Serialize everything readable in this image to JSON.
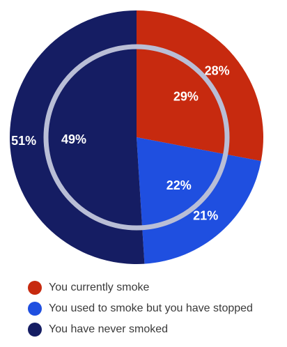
{
  "chart_data": {
    "type": "pie",
    "categories": [
      "You currently smoke",
      "You used to smoke but you have stopped",
      "You have never smoked"
    ],
    "colors": [
      "#c72a0f",
      "#1f4fe0",
      "#151d63"
    ],
    "series": [
      {
        "values": [
          28,
          21,
          51
        ],
        "labels": [
          "28%",
          "21%",
          "51%"
        ]
      },
      {
        "values": [
          29,
          22,
          49
        ],
        "labels": [
          "29%",
          "22%",
          "49%"
        ]
      }
    ],
    "ring_color": "#b9bed6",
    "legend": {
      "position": "bottom-left",
      "items": [
        {
          "label": "You currently smoke",
          "color": "#c72a0f"
        },
        {
          "label": "You used to smoke but you have stopped",
          "color": "#1f4fe0"
        },
        {
          "label": "You have never smoked",
          "color": "#151d63"
        }
      ]
    }
  }
}
